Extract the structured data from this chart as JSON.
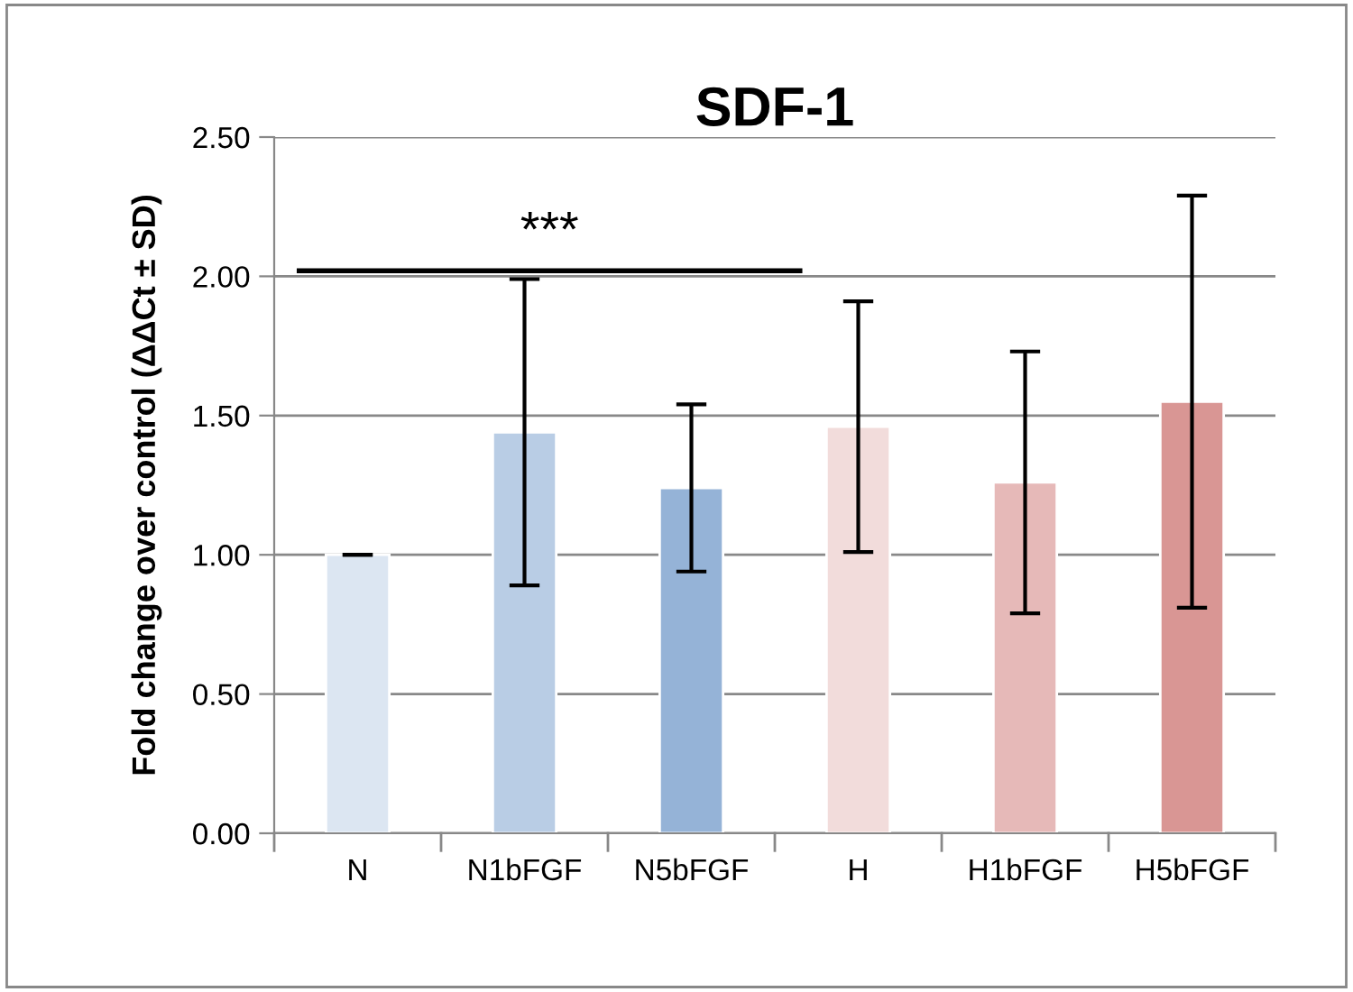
{
  "chart_data": {
    "type": "bar",
    "title": "SDF-1",
    "ylabel": "Fold change over control (ΔΔCt ± SD)",
    "categories": [
      "N",
      "N1bFGF",
      "N5bFGF",
      "H",
      "H1bFGF",
      "H5bFGF"
    ],
    "values": [
      1.0,
      1.44,
      1.24,
      1.46,
      1.26,
      1.55
    ],
    "errors": [
      0,
      0.55,
      0.3,
      0.45,
      0.47,
      0.74
    ],
    "colors": [
      "#dce6f2",
      "#b9cde5",
      "#95b3d7",
      "#f2dcdb",
      "#e6b9b8",
      "#d99694"
    ],
    "ylim": [
      0,
      2.5
    ],
    "yticks": [
      {
        "value": 0,
        "label": "0.00"
      },
      {
        "value": 0.5,
        "label": "0.50"
      },
      {
        "value": 1,
        "label": "1.00"
      },
      {
        "value": 1.5,
        "label": "1.50"
      },
      {
        "value": 2,
        "label": "2.00"
      },
      {
        "value": 2.5,
        "label": "2.50"
      }
    ],
    "grid": "y",
    "annotations": [
      "***"
    ]
  }
}
